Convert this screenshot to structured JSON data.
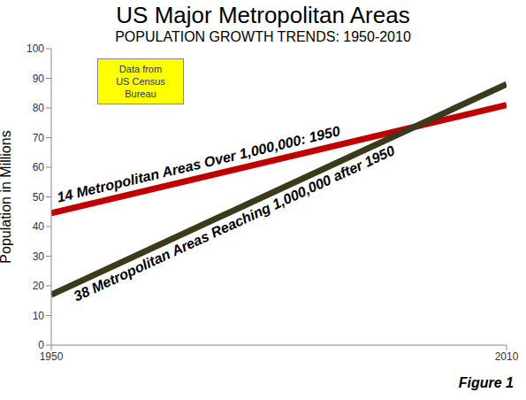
{
  "chart_data": {
    "type": "line",
    "title": "US Major Metropolitan Areas",
    "subtitle": "POPULATION GROWTH TRENDS: 1950-2010",
    "y_label": "Population in Millions",
    "annotation": [
      "Data from",
      "US Census Bureau"
    ],
    "caption": "Figure 1",
    "x": [
      1950,
      2010
    ],
    "series": [
      {
        "name": "14 Metropolitan Areas Over 1,000,000: 1950",
        "color": "#c00000",
        "values": [
          44.5,
          81
        ]
      },
      {
        "name": "38 Metropolitan Areas Reaching 1,000,000 after 1950",
        "color": "#3b3a1c",
        "values": [
          17,
          88
        ]
      }
    ],
    "xlim": [
      1950,
      2010
    ],
    "xticks": [
      1950,
      2010
    ],
    "ylim": [
      0,
      100
    ],
    "yticks": [
      0,
      10,
      20,
      30,
      40,
      50,
      60,
      70,
      80,
      90,
      100
    ],
    "grid": false
  }
}
